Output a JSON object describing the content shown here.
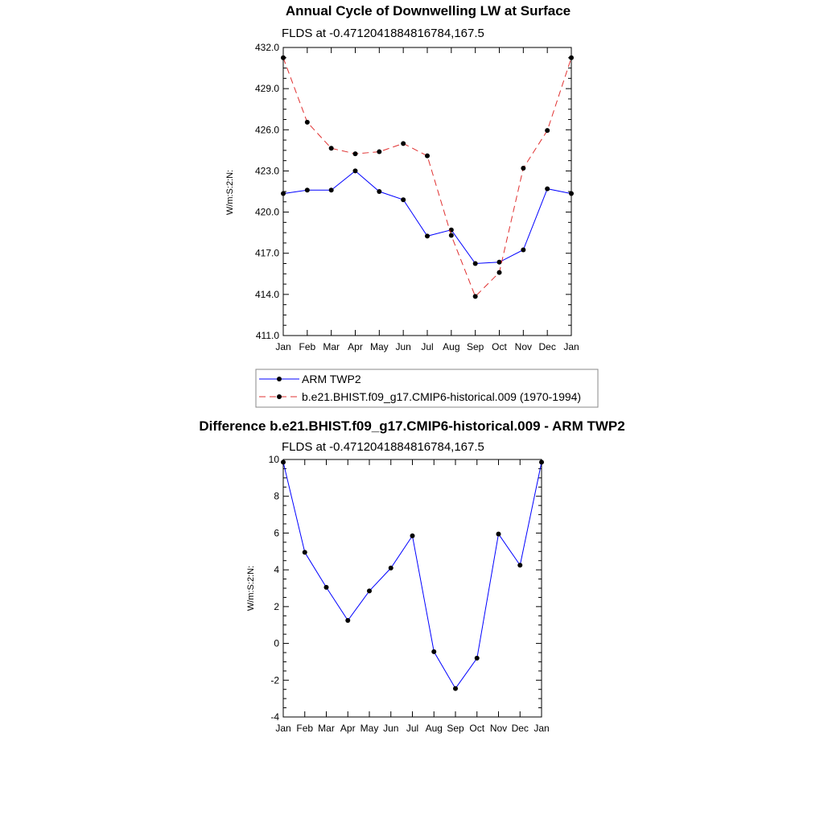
{
  "chart_data": [
    {
      "type": "line",
      "title": "Annual Cycle of Downwelling LW at Surface",
      "subtitle": "FLDS at -0.4712041884816784,167.5",
      "ylabel": "W/m:S:2:N:",
      "xlabel": "",
      "categories": [
        "Jan",
        "Feb",
        "Mar",
        "Apr",
        "May",
        "Jun",
        "Jul",
        "Aug",
        "Sep",
        "Oct",
        "Nov",
        "Dec",
        "Jan"
      ],
      "ylim": [
        411.0,
        432.0
      ],
      "yticks": [
        "411.0",
        "414.0",
        "417.0",
        "420.0",
        "423.0",
        "426.0",
        "429.0",
        "432.0"
      ],
      "grid": false,
      "legend_placement": "bottom",
      "series": [
        {
          "name": "ARM TWP2",
          "color": "#0000ff",
          "dash": "solid",
          "values": [
            421.35,
            421.6,
            421.6,
            423.0,
            421.5,
            420.9,
            418.25,
            418.7,
            416.25,
            416.35,
            417.25,
            421.7,
            421.35
          ]
        },
        {
          "name": "b.e21.BHIST.f09_g17.CMIP6-historical.009 (1970-1994)",
          "color": "#e03030",
          "dash": "dashed",
          "values": [
            431.25,
            426.55,
            424.65,
            424.25,
            424.4,
            425.0,
            424.1,
            418.3,
            413.85,
            415.6,
            423.2,
            425.95,
            431.25
          ]
        }
      ]
    },
    {
      "type": "line",
      "title": "Difference b.e21.BHIST.f09_g17.CMIP6-historical.009 - ARM TWP2",
      "subtitle": "FLDS at -0.4712041884816784,167.5",
      "ylabel": "W/m:S:2:N:",
      "xlabel": "",
      "categories": [
        "Jan",
        "Feb",
        "Mar",
        "Apr",
        "May",
        "Jun",
        "Jul",
        "Aug",
        "Sep",
        "Oct",
        "Nov",
        "Dec",
        "Jan"
      ],
      "ylim": [
        -4,
        10
      ],
      "yticks": [
        "-4",
        "-2",
        "0",
        "2",
        "4",
        "6",
        "8",
        "10"
      ],
      "grid": false,
      "series": [
        {
          "color": "#0000ff",
          "dash": "solid",
          "values": [
            9.85,
            4.95,
            3.05,
            1.25,
            2.85,
            4.1,
            5.85,
            -0.45,
            -2.45,
            -0.8,
            5.95,
            4.25,
            9.85
          ]
        }
      ]
    }
  ]
}
